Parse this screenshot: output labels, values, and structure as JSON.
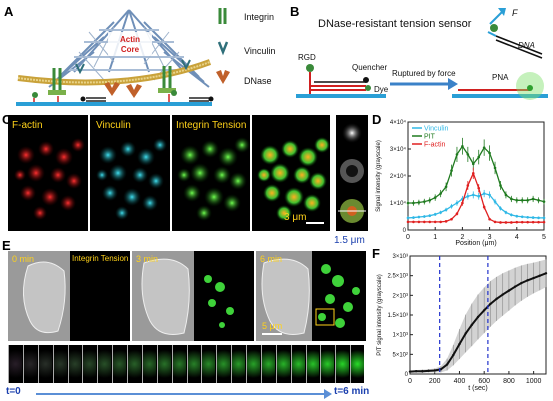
{
  "panels": {
    "a": {
      "letter": "A",
      "core_line1": "Actin",
      "core_line2": "Core",
      "legend": [
        "Integrin",
        "Vinculin",
        "DNase"
      ]
    },
    "b": {
      "letter": "B",
      "title": "DNase-resistant tension sensor",
      "rgd": "RGD",
      "quencher": "Quencher",
      "dye": "Dye",
      "ruptured": "Ruptured by force",
      "force": "F",
      "dna": "DNA",
      "pna": "PNA"
    },
    "c": {
      "letter": "C",
      "labels": [
        "F-actin",
        "Vinculin",
        "Integrin Tension"
      ],
      "scale_bar": "3 μm",
      "inset_scale": "1.5 μm"
    },
    "e": {
      "letter": "E",
      "times": [
        "0 min",
        "3 min",
        "6 min"
      ],
      "tension_label": "Integrin Tension",
      "scale_bar": "5 μm",
      "t_start": "t=0",
      "t_end": "t=6 min"
    },
    "colors": {
      "vinculin": "#2fb8e6",
      "pit": "#1f7a1f",
      "factin": "#e02020",
      "dash": "#2233cc"
    }
  },
  "chart_data": [
    {
      "id": "D",
      "letter": "D",
      "type": "line",
      "xlabel": "Position (μm)",
      "ylabel": "Signal intensity (grayscale)",
      "xlim": [
        0,
        5
      ],
      "ylim": [
        0,
        40000
      ],
      "x_ticks": [
        "0",
        "1",
        "2",
        "3",
        "4",
        "5"
      ],
      "y_ticks": [
        "0",
        "1×10⁴",
        "2×10⁴",
        "3×10⁴",
        "4×10⁴"
      ],
      "legend_position": "top-left",
      "x": [
        0,
        0.2,
        0.4,
        0.6,
        0.8,
        1.0,
        1.2,
        1.4,
        1.6,
        1.8,
        2.0,
        2.2,
        2.4,
        2.6,
        2.8,
        3.0,
        3.2,
        3.4,
        3.6,
        3.8,
        4.0,
        4.2,
        4.4,
        4.6,
        4.8,
        5.0
      ],
      "series": [
        {
          "name": "Vinculin",
          "color": "#2fb8e6",
          "values": [
            4500,
            4600,
            4800,
            5000,
            5300,
            5800,
            6500,
            7500,
            8800,
            10000,
            11500,
            12500,
            13000,
            12500,
            13500,
            13000,
            10500,
            8000,
            6500,
            5600,
            5100,
            4900,
            4700,
            4600,
            4500,
            4500
          ]
        },
        {
          "name": "PIT",
          "color": "#1f7a1f",
          "values": [
            10000,
            10000,
            10200,
            10500,
            11000,
            12000,
            13500,
            16000,
            22000,
            28000,
            31000,
            28000,
            24500,
            27000,
            30500,
            28500,
            23000,
            16500,
            13000,
            11500,
            11000,
            11000,
            11000,
            11500,
            11000,
            10500
          ]
        },
        {
          "name": "F-actin",
          "color": "#e02020",
          "values": [
            3000,
            3000,
            3000,
            3000,
            3000,
            3000,
            3000,
            3200,
            4000,
            6000,
            10000,
            16500,
            21000,
            15500,
            8500,
            4000,
            3000,
            2800,
            2800,
            2800,
            2900,
            2900,
            2900,
            2900,
            2900,
            2900
          ]
        }
      ]
    },
    {
      "id": "F",
      "letter": "F",
      "type": "line",
      "xlabel": "t (sec)",
      "ylabel": "PIT signal intensity (grayscale)",
      "xlim": [
        0,
        1100
      ],
      "ylim": [
        0,
        3000
      ],
      "x_ticks": [
        "0",
        "200",
        "400",
        "600",
        "800",
        "1000"
      ],
      "y_ticks": [
        "0",
        "5×10²",
        "1×10³",
        "1.5×10³",
        "2×10³",
        "2.5×10³",
        "3×10³"
      ],
      "vlines": [
        240,
        630
      ],
      "series": [
        {
          "name": "",
          "color": "#111111",
          "x": [
            0,
            50,
            100,
            150,
            200,
            250,
            300,
            350,
            400,
            450,
            500,
            550,
            600,
            650,
            700,
            750,
            800,
            850,
            900,
            950,
            1000,
            1050,
            1100
          ],
          "values": [
            60,
            70,
            70,
            80,
            90,
            120,
            240,
            480,
            760,
            1030,
            1250,
            1450,
            1620,
            1780,
            1910,
            2020,
            2120,
            2220,
            2310,
            2380,
            2440,
            2500,
            2560
          ],
          "error": [
            30,
            30,
            40,
            40,
            50,
            80,
            150,
            260,
            380,
            480,
            540,
            570,
            580,
            580,
            560,
            540,
            510,
            480,
            450,
            420,
            390,
            370,
            350
          ]
        }
      ]
    }
  ]
}
